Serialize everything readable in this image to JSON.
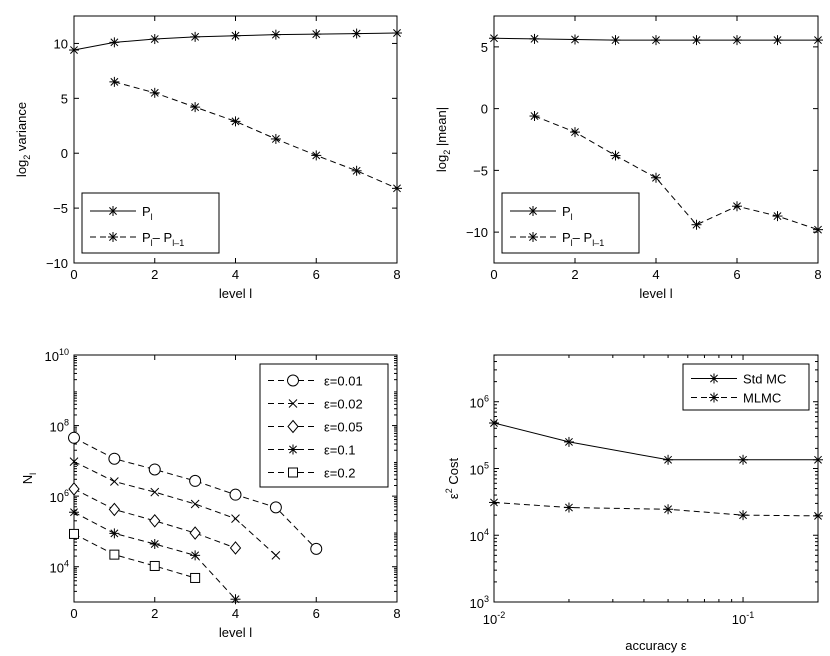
{
  "chart_data": [
    {
      "id": "variance",
      "type": "line",
      "scale": "linear",
      "xlabel": "level l",
      "ylabel_main": "log",
      "ylabel_sub": "2",
      "ylabel_rest": " variance",
      "xlim": [
        0,
        8
      ],
      "ylim": [
        -10,
        12.5
      ],
      "xticks": [
        0,
        2,
        4,
        6,
        8
      ],
      "yticks": [
        -10,
        -5,
        0,
        5,
        10
      ],
      "series": [
        {
          "name": "P_l",
          "dash": false,
          "marker": "star",
          "x": [
            0,
            1,
            2,
            3,
            4,
            5,
            6,
            7,
            8
          ],
          "y": [
            9.4,
            10.1,
            10.4,
            10.6,
            10.7,
            10.8,
            10.85,
            10.9,
            10.95
          ]
        },
        {
          "name": "P_l - P_l-1",
          "dash": true,
          "marker": "star",
          "x": [
            1,
            2,
            3,
            4,
            5,
            6,
            7,
            8
          ],
          "y": [
            6.5,
            5.5,
            4.2,
            2.9,
            1.3,
            -0.2,
            -1.6,
            -3.2
          ]
        }
      ],
      "legend": {
        "position": "bottom-left",
        "entries": [
          {
            "main": "P",
            "sub": "l",
            "rest": "",
            "sub2": ""
          },
          {
            "main": "P",
            "sub": "l",
            "rest": "– P",
            "sub2": "l–1"
          }
        ]
      }
    },
    {
      "id": "mean",
      "type": "line",
      "scale": "linear",
      "xlabel": "level l",
      "ylabel_main": "log",
      "ylabel_sub": "2",
      "ylabel_rest": " |mean|",
      "xlim": [
        0,
        8
      ],
      "ylim": [
        -12.5,
        7.5
      ],
      "xticks": [
        0,
        2,
        4,
        6,
        8
      ],
      "yticks": [
        -10,
        -5,
        0,
        5
      ],
      "series": [
        {
          "name": "P_l",
          "dash": false,
          "marker": "star",
          "x": [
            0,
            1,
            2,
            3,
            4,
            5,
            6,
            7,
            8
          ],
          "y": [
            5.7,
            5.65,
            5.6,
            5.55,
            5.55,
            5.55,
            5.55,
            5.55,
            5.55
          ]
        },
        {
          "name": "P_l - P_l-1",
          "dash": true,
          "marker": "star",
          "x": [
            1,
            2,
            3,
            4,
            5,
            6,
            7,
            8
          ],
          "y": [
            -0.6,
            -1.9,
            -3.8,
            -5.6,
            -9.4,
            -7.9,
            -8.7,
            -9.8
          ]
        }
      ],
      "legend": {
        "position": "bottom-left",
        "entries": [
          {
            "main": "P",
            "sub": "l",
            "rest": "",
            "sub2": ""
          },
          {
            "main": "P",
            "sub": "l",
            "rest": "– P",
            "sub2": "l–1"
          }
        ]
      }
    },
    {
      "id": "samples",
      "type": "line",
      "scale": "semilogy",
      "xlabel": "level l",
      "ylabel_main": "N",
      "ylabel_sub": "l",
      "ylabel_rest": "",
      "xlim": [
        0,
        8
      ],
      "ylim_log10": [
        3,
        10
      ],
      "xticks": [
        0,
        2,
        4,
        6,
        8
      ],
      "yticks_log10": [
        4,
        6,
        8,
        10
      ],
      "series": [
        {
          "name": "ε=0.01",
          "dash": true,
          "marker": "circle",
          "x": [
            0,
            1,
            2,
            3,
            4,
            5,
            6
          ],
          "y": [
            45000000.0,
            11500000.0,
            5700000.0,
            2700000.0,
            1100000.0,
            480000.0,
            32000.0
          ]
        },
        {
          "name": "ε=0.02",
          "dash": true,
          "marker": "cross",
          "x": [
            0,
            1,
            2,
            3,
            4,
            5
          ],
          "y": [
            9500000.0,
            2600000.0,
            1300000.0,
            600000.0,
            230000.0,
            21000.0
          ]
        },
        {
          "name": "ε=0.05",
          "dash": true,
          "marker": "diamond",
          "x": [
            0,
            1,
            2,
            3,
            4
          ],
          "y": [
            1600000.0,
            420000.0,
            200000.0,
            90000.0,
            34000.0
          ]
        },
        {
          "name": "ε=0.1",
          "dash": true,
          "marker": "star",
          "x": [
            0,
            1,
            2,
            3,
            4
          ],
          "y": [
            350000.0,
            88000.0,
            44000.0,
            21000.0,
            1200.0
          ]
        },
        {
          "name": "ε=0.2",
          "dash": true,
          "marker": "square",
          "x": [
            0,
            1,
            2,
            3
          ],
          "y": [
            85000.0,
            22000.0,
            10500.0,
            4800.0
          ]
        }
      ],
      "legend": {
        "position": "top-right",
        "entries": [
          {
            "main": "ε=0.01"
          },
          {
            "main": "ε=0.02"
          },
          {
            "main": "ε=0.05"
          },
          {
            "main": "ε=0.1"
          },
          {
            "main": "ε=0.2"
          }
        ]
      }
    },
    {
      "id": "cost",
      "type": "line",
      "scale": "loglog",
      "xlabel": "accuracy ε",
      "ylabel_main": "ε",
      "ylabel_sup": "2",
      "ylabel_rest": " Cost",
      "xlim_log10": [
        -2,
        -0.699
      ],
      "ylim_log10": [
        3,
        6.7
      ],
      "xticks_log10": [
        -2,
        -1
      ],
      "yticks_log10": [
        3,
        4,
        5,
        6
      ],
      "series": [
        {
          "name": "Std MC",
          "dash": false,
          "marker": "star",
          "x": [
            0.01,
            0.02,
            0.05,
            0.1,
            0.2
          ],
          "y": [
            480000.0,
            250000.0,
            135000.0,
            135000.0,
            135000.0
          ]
        },
        {
          "name": "MLMC",
          "dash": true,
          "marker": "star",
          "x": [
            0.01,
            0.02,
            0.05,
            0.1,
            0.2
          ],
          "y": [
            31000.0,
            26000.0,
            24500.0,
            20000.0,
            19500.0
          ]
        }
      ],
      "legend": {
        "position": "top-right",
        "entries": [
          {
            "main": "Std MC"
          },
          {
            "main": "MLMC"
          }
        ]
      }
    }
  ],
  "tick_text": {
    "lin": {
      "-10": "−10",
      "-5": "−5",
      "0": "0",
      "2": "2",
      "4": "4",
      "5": "5",
      "6": "6",
      "8": "8",
      "10": "10"
    },
    "pow_base": "10"
  }
}
